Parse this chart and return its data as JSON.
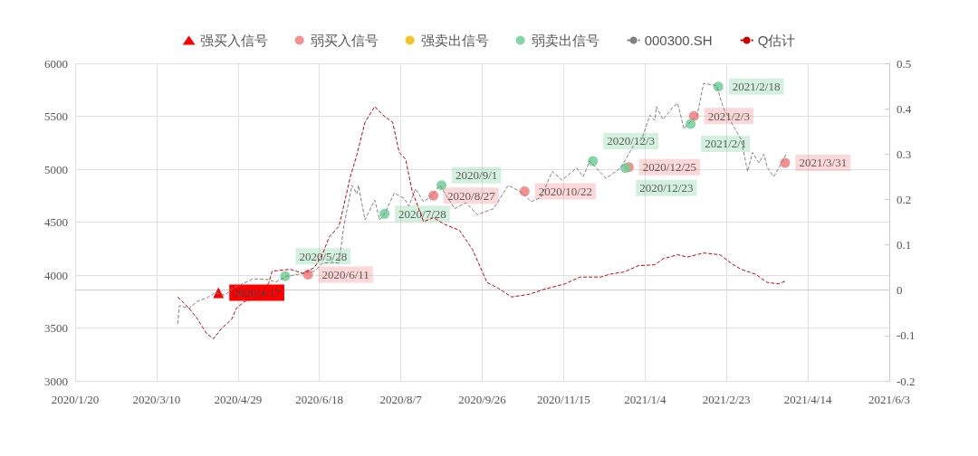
{
  "chart_data": {
    "type": "line",
    "grid": true,
    "legend": "top",
    "xlim": [
      "2020-01-20",
      "2021-06-03"
    ],
    "xticks": [
      {
        "value": "2020-01-20",
        "label": "2020/1/20"
      },
      {
        "value": "2020-03-10",
        "label": "2020/3/10"
      },
      {
        "value": "2020-04-29",
        "label": "2020/4/29"
      },
      {
        "value": "2020-06-18",
        "label": "2020/6/18"
      },
      {
        "value": "2020-08-07",
        "label": "2020/8/7"
      },
      {
        "value": "2020-09-26",
        "label": "2020/9/26"
      },
      {
        "value": "2020-11-15",
        "label": "2020/11/15"
      },
      {
        "value": "2021-01-04",
        "label": "2021/1/4"
      },
      {
        "value": "2021-02-23",
        "label": "2021/2/23"
      },
      {
        "value": "2021-04-14",
        "label": "2021/4/14"
      },
      {
        "value": "2021-06-03",
        "label": "2021/6/3"
      }
    ],
    "ylim": [
      3000,
      6000
    ],
    "yticks": [
      3000,
      3500,
      4000,
      4500,
      5000,
      5500,
      6000
    ],
    "y2lim": [
      -0.2,
      0.5
    ],
    "y2ticks": [
      -0.2,
      -0.1,
      0,
      0.1,
      0.2,
      0.3,
      0.4,
      0.5
    ],
    "series": [
      {
        "name": "强买入信号",
        "type": "scatter",
        "marker": "triangle",
        "color": "#ff0000",
        "x": [
          "2020-04-17"
        ],
        "values": [
          3834
        ],
        "value_labels": [
          "2020/4/17"
        ]
      },
      {
        "name": "弱买入信号",
        "type": "scatter",
        "marker": "circle",
        "color": "#f47c7c",
        "x": [
          "2020-06-11",
          "2020-08-27",
          "2020-10-22",
          "2020-12-25",
          "2021-02-03",
          "2021-03-31"
        ],
        "values": [
          4005,
          4750,
          4790,
          5020,
          5502,
          5060
        ],
        "value_labels": [
          "2020/6/11",
          "2020/8/27",
          "2020/10/22",
          "2020/12/25",
          "2021/2/3",
          "2021/3/31"
        ]
      },
      {
        "name": "强卖出信号",
        "type": "scatter",
        "marker": "circle",
        "color": "#f5b800"
      },
      {
        "name": "弱卖出信号",
        "type": "scatter",
        "marker": "circle",
        "color": "#6fcf97",
        "x": [
          "2020-05-28",
          "2020-07-28",
          "2020-09-01",
          "2020-12-03",
          "2020-12-23",
          "2021-02-01",
          "2021-02-18"
        ],
        "values": [
          3990,
          4578,
          4848,
          5077,
          5010,
          5428,
          5780
        ],
        "value_labels": [
          "2020/5/28",
          "2020/7/28",
          "2020/9/1",
          "2020/12/3",
          "2020/12/23",
          "2021/2/1",
          "2021/2/18"
        ]
      },
      {
        "name": "000300.SH",
        "marker": "none",
        "line_style": "dashed",
        "color": "#808080",
        "x": [
          "2020-03-23",
          "2020-03-24",
          "2020-03-30",
          "2020-04-04",
          "2020-04-10",
          "2020-04-15",
          "2020-04-21",
          "2020-04-26",
          "2020-05-06",
          "2020-05-08",
          "2020-05-18",
          "2020-05-22",
          "2020-05-29",
          "2020-06-08",
          "2020-06-15",
          "2020-06-20",
          "2020-06-27",
          "2020-06-30",
          "2020-07-03",
          "2020-07-08",
          "2020-07-11",
          "2020-07-12",
          "2020-07-16",
          "2020-07-22",
          "2020-07-25",
          "2020-07-28",
          "2020-08-03",
          "2020-08-09",
          "2020-08-12",
          "2020-08-16",
          "2020-08-21",
          "2020-08-26",
          "2020-08-31",
          "2020-09-09",
          "2020-09-16",
          "2020-09-23",
          "2020-10-03",
          "2020-10-12",
          "2020-10-21",
          "2020-10-26",
          "2020-11-01",
          "2020-11-08",
          "2020-11-14",
          "2020-11-23",
          "2020-11-27",
          "2020-12-01",
          "2020-12-11",
          "2020-12-20",
          "2020-12-28",
          "2021-01-02",
          "2021-01-07",
          "2021-01-10",
          "2021-01-11",
          "2021-01-15",
          "2021-01-21",
          "2021-01-24",
          "2021-01-28",
          "2021-01-30",
          "2021-02-05",
          "2021-02-09",
          "2021-02-17",
          "2021-02-21",
          "2021-02-25",
          "2021-03-04",
          "2021-03-08",
          "2021-03-11",
          "2021-03-15",
          "2021-03-18",
          "2021-03-20",
          "2021-03-24",
          "2021-03-29",
          "2021-04-01"
        ],
        "values": [
          3540,
          3711,
          3687,
          3752,
          3785,
          3834,
          3810,
          3875,
          3948,
          3965,
          3957,
          3932,
          3989,
          4014,
          4038,
          4112,
          4120,
          4112,
          4464,
          4848,
          4766,
          4848,
          4521,
          4709,
          4521,
          4578,
          4774,
          4725,
          4651,
          4815,
          4692,
          4750,
          4848,
          4627,
          4684,
          4570,
          4627,
          4848,
          4774,
          4692,
          4733,
          4978,
          4897,
          5011,
          4929,
          5077,
          4913,
          5011,
          5224,
          5281,
          5510,
          5461,
          5592,
          5469,
          5583,
          5624,
          5379,
          5420,
          5510,
          5812,
          5788,
          5583,
          5469,
          5281,
          4978,
          5158,
          5060,
          5142,
          5019,
          4929,
          5060,
          5158
        ]
      },
      {
        "name": "Q估计",
        "axis": "y2",
        "marker": "none",
        "line_style": "dashed",
        "color": "#cc0000",
        "x": [
          "2020-03-23",
          "2020-03-30",
          "2020-04-04",
          "2020-04-10",
          "2020-04-14",
          "2020-04-19",
          "2020-04-25",
          "2020-04-28",
          "2020-05-03",
          "2020-05-13",
          "2020-05-18",
          "2020-05-20",
          "2020-05-31",
          "2020-06-08",
          "2020-06-15",
          "2020-06-20",
          "2020-06-24",
          "2020-06-30",
          "2020-07-01",
          "2020-07-07",
          "2020-07-11",
          "2020-07-16",
          "2020-07-22",
          "2020-07-27",
          "2020-08-02",
          "2020-08-06",
          "2020-08-10",
          "2020-08-14",
          "2020-08-21",
          "2020-08-27",
          "2020-09-03",
          "2020-09-12",
          "2020-09-20",
          "2020-09-29",
          "2020-10-06",
          "2020-10-14",
          "2020-10-25",
          "2020-11-03",
          "2020-11-16",
          "2020-11-25",
          "2020-12-08",
          "2020-12-13",
          "2020-12-22",
          "2020-12-31",
          "2021-01-10",
          "2021-01-15",
          "2021-01-24",
          "2021-01-30",
          "2021-02-09",
          "2021-02-19",
          "2021-02-26",
          "2021-03-04",
          "2021-03-13",
          "2021-03-20",
          "2021-03-27",
          "2021-04-01"
        ],
        "values": [
          -0.015,
          -0.04,
          -0.063,
          -0.097,
          -0.107,
          -0.084,
          -0.065,
          -0.04,
          -0.025,
          -0.015,
          0.017,
          0.042,
          0.046,
          0.037,
          0.05,
          0.08,
          0.117,
          0.141,
          0.155,
          0.25,
          0.298,
          0.37,
          0.405,
          0.386,
          0.37,
          0.304,
          0.288,
          0.218,
          0.151,
          0.16,
          0.145,
          0.132,
          0.09,
          0.017,
          0.004,
          -0.015,
          -0.009,
          0.002,
          0.014,
          0.029,
          0.029,
          0.035,
          0.04,
          0.054,
          0.056,
          0.069,
          0.078,
          0.073,
          0.082,
          0.078,
          0.059,
          0.046,
          0.035,
          0.017,
          0.014,
          0.021
        ]
      }
    ]
  }
}
